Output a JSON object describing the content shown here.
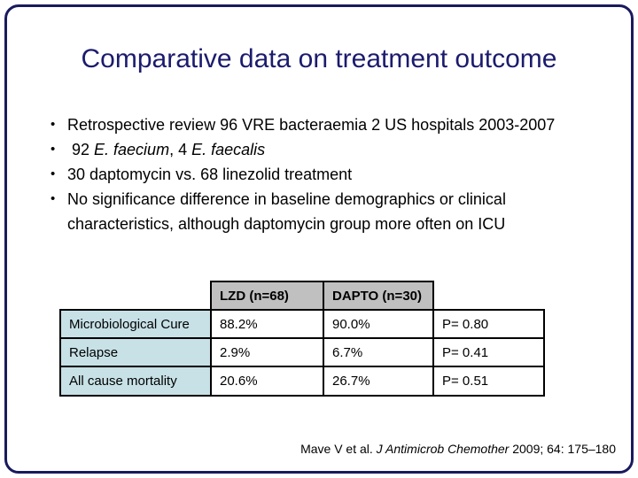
{
  "slide": {
    "title": "Comparative data on treatment outcome",
    "bullet_marker": "•",
    "bullets": {
      "b1": "Retrospective review 96 VRE bacteraemia 2 US hospitals 2003-2007",
      "b2_pre": " 92 ",
      "b2_italic1": "E. faecium",
      "b2_mid": ", 4 ",
      "b2_italic2": "E. faecalis",
      "b3": "30 daptomycin vs. 68 linezolid treatment",
      "b4": "No significance difference in baseline demographics or clinical characteristics, although daptomycin group more often on ICU"
    },
    "table": {
      "headers": [
        "LZD (n=68)",
        "DAPTO (n=30)"
      ],
      "rows": [
        {
          "label": "Microbiological Cure",
          "lzd": "88.2%",
          "dapto": "90.0%",
          "p": "P= 0.80"
        },
        {
          "label": "Relapse",
          "lzd": "2.9%",
          "dapto": "6.7%",
          "p": "P= 0.41"
        },
        {
          "label": "All cause mortality",
          "lzd": "20.6%",
          "dapto": "26.7%",
          "p": "P= 0.51"
        }
      ]
    },
    "citation": {
      "prefix": "Mave V et al. ",
      "journal_italic": "J Antimicrob Chemother",
      "suffix": " 2009; 64: 175–180"
    },
    "colors": {
      "title_text": "#1b1b6e",
      "frame_border": "#1a1a5e",
      "table_header_bg": "#c0c0c0",
      "table_label_bg": "#c7e1e6",
      "table_border": "#000000",
      "body_text": "#000000"
    }
  }
}
